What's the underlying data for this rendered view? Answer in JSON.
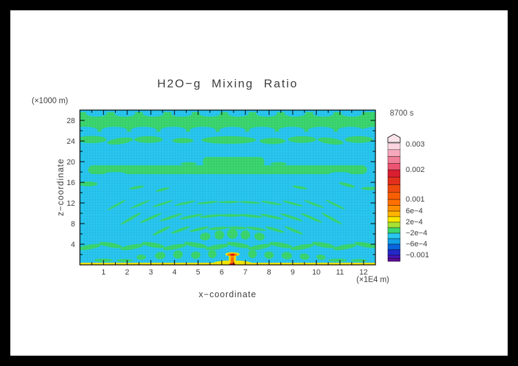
{
  "title": "H2O−g Mixing Ratio",
  "timestamp": "8700 s",
  "axes": {
    "x": {
      "label": "x−coordinate",
      "unit": "(×1E4 m)",
      "ticks": [
        1,
        2,
        3,
        4,
        5,
        6,
        7,
        8,
        9,
        10,
        11,
        12
      ],
      "minor_ticks": [
        0.5,
        1.5,
        2.5,
        3.5,
        4.5,
        5.5,
        6.5,
        7.5,
        8.5,
        9.5,
        10.5,
        11.5
      ],
      "range": [
        0,
        12.5
      ]
    },
    "z": {
      "label": "z−coordinate",
      "unit": "(×1000 m)",
      "ticks": [
        4,
        8,
        12,
        16,
        20,
        24,
        28
      ],
      "minor_ticks": [
        2,
        6,
        10,
        14,
        18,
        22,
        26
      ],
      "range": [
        0,
        30
      ]
    }
  },
  "colorbar": {
    "arrow_color": "#FBE3EA",
    "bands": [
      [
        "#FAD4DE",
        9.75
      ],
      [
        "#F6A8BC",
        9.75
      ],
      [
        "#F17E98",
        9.75
      ],
      [
        "#EB5472",
        9.75
      ],
      [
        "#D81E30",
        10.75
      ],
      [
        "#E2301C",
        10.75
      ],
      [
        "#EE4A0E",
        10.75
      ],
      [
        "#F85E04",
        10.75
      ],
      [
        "#FF7000",
        8.5
      ],
      [
        "#FF8E00",
        8.5
      ],
      [
        "#FFB400",
        8
      ],
      [
        "#F8E800",
        8
      ],
      [
        "#A8E232",
        8
      ],
      [
        "#3CD66E",
        8
      ],
      [
        "#29C6F0",
        8
      ],
      [
        "#129FE6",
        8
      ],
      [
        "#0A64DC",
        8
      ],
      [
        "#2428C8",
        8
      ],
      [
        "#4614B8",
        4.5
      ],
      [
        "#5C0F93",
        4.5
      ]
    ],
    "labels": [
      [
        "0.003",
        10
      ],
      [
        "0.002",
        47
      ],
      [
        "0.001",
        90
      ],
      [
        "6e−4",
        107
      ],
      [
        "2e−4",
        123
      ],
      [
        "−2e−4",
        139
      ],
      [
        "−6e−4",
        155
      ],
      [
        "−0.001",
        171
      ]
    ]
  },
  "chart_data": {
    "type": "heatmap",
    "title": "H2O−g Mixing Ratio",
    "time": "8700 s",
    "x_range": [
      0,
      12.5
    ],
    "z_range": [
      0,
      30
    ],
    "x_unit": "×1E4 m",
    "z_unit": "×1000 m",
    "levels": [
      -0.001,
      -0.0006,
      -0.0002,
      0.0002,
      0.0006,
      0.001,
      0.002,
      0.003
    ],
    "background_value_range": [
      -0.0006,
      -0.0002
    ],
    "description": "Filled-contour H2O gas mixing-ratio anomaly at t = 8700 s. Cyan background (slightly negative, −6e−4 to −2e−4) with near-zero green (−2e−4 to 2e−4) wave-interference blobs radiating from a surface source at x ≈ 6.5×10^4 m; thin yellow (2e−4 to 6e−4) surface layer along z = 0; narrow hot plume at x ≈ 6.5 reaching orange/red values up to ≈0.003 near z ≈ 2×1000 m.",
    "palette": {
      "BG": "#29C6F0",
      "G": "#3CD66E",
      "C": "#29C6F0",
      "Y": "#F8E800",
      "O": "#FF8E00",
      "D": "#FF6A00",
      "R": "#E00816"
    },
    "features": [
      [
        "r",
        6.25,
        27.7,
        12.5,
        3.8,
        0,
        "G"
      ],
      [
        "e",
        0.7,
        29.35,
        0.45,
        0.62,
        0,
        "C"
      ],
      [
        "e",
        1.9,
        29.35,
        0.45,
        0.62,
        0,
        "C"
      ],
      [
        "e",
        3.1,
        29.35,
        0.45,
        0.62,
        0,
        "C"
      ],
      [
        "e",
        4.3,
        29.35,
        0.45,
        0.62,
        0,
        "C"
      ],
      [
        "e",
        5.5,
        29.35,
        0.45,
        0.62,
        0,
        "C"
      ],
      [
        "e",
        6.7,
        29.35,
        0.45,
        0.62,
        0,
        "C"
      ],
      [
        "e",
        7.9,
        29.35,
        0.45,
        0.62,
        0,
        "C"
      ],
      [
        "e",
        9.1,
        29.35,
        0.45,
        0.62,
        0,
        "C"
      ],
      [
        "e",
        10.3,
        29.35,
        0.45,
        0.62,
        0,
        "C"
      ],
      [
        "e",
        11.5,
        29.35,
        0.45,
        0.62,
        0,
        "C"
      ],
      [
        "e",
        0.2,
        26.05,
        0.55,
        0.72,
        0,
        "C"
      ],
      [
        "e",
        1.45,
        26.05,
        0.55,
        0.72,
        0,
        "C"
      ],
      [
        "e",
        2.7,
        26.05,
        0.55,
        0.72,
        0,
        "C"
      ],
      [
        "e",
        3.95,
        26.05,
        0.55,
        0.72,
        0,
        "C"
      ],
      [
        "e",
        5.2,
        26.05,
        0.55,
        0.72,
        0,
        "C"
      ],
      [
        "e",
        6.45,
        26.05,
        0.55,
        0.72,
        0,
        "C"
      ],
      [
        "e",
        7.7,
        26.05,
        0.55,
        0.72,
        0,
        "C"
      ],
      [
        "e",
        8.95,
        26.05,
        0.55,
        0.72,
        0,
        "C"
      ],
      [
        "e",
        10.2,
        26.05,
        0.55,
        0.72,
        0,
        "C"
      ],
      [
        "e",
        11.45,
        26.05,
        0.55,
        0.72,
        0,
        "C"
      ],
      [
        "e",
        12.5,
        26.05,
        0.55,
        0.72,
        0,
        "C"
      ],
      [
        "e",
        0.5,
        24.3,
        0.62,
        0.7,
        0,
        "G"
      ],
      [
        "e",
        1.7,
        24.0,
        0.55,
        0.6,
        -8,
        "G"
      ],
      [
        "e",
        2.9,
        24.3,
        0.6,
        0.65,
        0,
        "G"
      ],
      [
        "e",
        4.35,
        24.1,
        0.45,
        0.5,
        0,
        "G"
      ],
      [
        "e",
        6.3,
        24.2,
        1.15,
        0.75,
        0,
        "G"
      ],
      [
        "e",
        8.15,
        24.0,
        0.55,
        0.6,
        0,
        "G"
      ],
      [
        "e",
        9.4,
        24.3,
        0.6,
        0.65,
        0,
        "G"
      ],
      [
        "e",
        10.6,
        24.0,
        0.55,
        0.6,
        8,
        "G"
      ],
      [
        "e",
        11.8,
        24.3,
        0.6,
        0.65,
        0,
        "G"
      ],
      [
        "r",
        6.25,
        18.45,
        11.8,
        1.7,
        8,
        "G"
      ],
      [
        "r",
        6.5,
        19.95,
        2.6,
        1.9,
        6,
        "G"
      ],
      [
        "e",
        4.6,
        19.6,
        0.35,
        0.3,
        0,
        "G"
      ],
      [
        "e",
        8.4,
        19.6,
        0.35,
        0.3,
        0,
        "G"
      ],
      [
        "e",
        1.5,
        17.65,
        0.45,
        0.33,
        0,
        "C"
      ],
      [
        "e",
        11.0,
        17.65,
        0.45,
        0.33,
        0,
        "C"
      ],
      [
        "e",
        0.35,
        15.7,
        0.4,
        0.45,
        0,
        "G"
      ],
      [
        "e",
        2.4,
        15.0,
        0.32,
        0.27,
        -10,
        "G"
      ],
      [
        "e",
        3.5,
        14.6,
        0.3,
        0.25,
        -15,
        "G"
      ],
      [
        "e",
        9.3,
        15.0,
        0.32,
        0.27,
        10,
        "G"
      ],
      [
        "e",
        11.3,
        15.5,
        0.35,
        0.3,
        15,
        "G"
      ],
      [
        "e",
        12.25,
        14.8,
        0.35,
        0.3,
        0,
        "G"
      ],
      [
        "e",
        1.55,
        11.6,
        0.45,
        0.22,
        -29,
        "G"
      ],
      [
        "e",
        2.55,
        11.73,
        0.45,
        0.22,
        -23,
        "G"
      ],
      [
        "e",
        3.5,
        11.85,
        0.45,
        0.22,
        -18,
        "G"
      ],
      [
        "e",
        4.45,
        11.96,
        0.45,
        0.22,
        -12,
        "G"
      ],
      [
        "e",
        5.4,
        12.07,
        0.45,
        0.22,
        -6,
        "G"
      ],
      [
        "e",
        6.3,
        12.18,
        0.45,
        0.22,
        -1,
        "G"
      ],
      [
        "e",
        7.2,
        12.11,
        0.45,
        0.22,
        4,
        "G"
      ],
      [
        "e",
        8.1,
        12.0,
        0.45,
        0.22,
        10,
        "G"
      ],
      [
        "e",
        9.0,
        11.89,
        0.45,
        0.22,
        15,
        "G"
      ],
      [
        "e",
        9.9,
        11.79,
        0.45,
        0.22,
        21,
        "G"
      ],
      [
        "e",
        10.8,
        11.68,
        0.45,
        0.22,
        26,
        "G"
      ],
      [
        "e",
        2.15,
        8.96,
        0.5,
        0.25,
        -30,
        "G"
      ],
      [
        "e",
        3.0,
        9.08,
        0.5,
        0.25,
        -24,
        "G"
      ],
      [
        "e",
        3.85,
        9.21,
        0.5,
        0.25,
        -18,
        "G"
      ],
      [
        "e",
        4.7,
        9.34,
        0.5,
        0.25,
        -12,
        "G"
      ],
      [
        "e",
        5.55,
        9.47,
        0.5,
        0.25,
        -6,
        "G"
      ],
      [
        "e",
        6.4,
        9.59,
        0.5,
        0.25,
        0,
        "G"
      ],
      [
        "e",
        7.25,
        9.48,
        0.5,
        0.25,
        6,
        "G"
      ],
      [
        "e",
        8.1,
        9.35,
        0.5,
        0.25,
        12,
        "G"
      ],
      [
        "e",
        8.95,
        9.23,
        0.5,
        0.25,
        18,
        "G"
      ],
      [
        "e",
        9.8,
        9.1,
        0.5,
        0.25,
        23,
        "G"
      ],
      [
        "e",
        10.65,
        8.97,
        0.5,
        0.25,
        29,
        "G"
      ],
      [
        "e",
        3.45,
        6.6,
        0.42,
        0.28,
        -27,
        "G"
      ],
      [
        "e",
        4.25,
        6.76,
        0.42,
        0.28,
        -20,
        "G"
      ],
      [
        "e",
        5.05,
        6.92,
        0.42,
        0.28,
        -13,
        "G"
      ],
      [
        "e",
        5.85,
        7.08,
        0.42,
        0.28,
        -5,
        "G"
      ],
      [
        "e",
        6.65,
        7.16,
        0.42,
        0.28,
        2,
        "G"
      ],
      [
        "e",
        7.45,
        7.0,
        0.42,
        0.28,
        9,
        "G"
      ],
      [
        "e",
        8.25,
        6.84,
        0.42,
        0.28,
        16,
        "G"
      ],
      [
        "e",
        9.05,
        6.68,
        0.42,
        0.28,
        23,
        "G"
      ],
      [
        "e",
        5.3,
        5.5,
        0.22,
        0.75,
        -8,
        "G"
      ],
      [
        "e",
        5.9,
        5.8,
        0.2,
        0.9,
        -4,
        "G"
      ],
      [
        "e",
        6.45,
        6.0,
        0.22,
        1.0,
        0,
        "G"
      ],
      [
        "e",
        7.0,
        5.8,
        0.2,
        0.9,
        4,
        "G"
      ],
      [
        "e",
        7.6,
        5.5,
        0.22,
        0.75,
        8,
        "G"
      ],
      [
        "e",
        0.4,
        3.45,
        0.5,
        0.45,
        -10,
        "G"
      ],
      [
        "e",
        1.3,
        3.85,
        0.5,
        0.45,
        10,
        "G"
      ],
      [
        "e",
        2.2,
        3.45,
        0.5,
        0.45,
        -10,
        "G"
      ],
      [
        "e",
        3.1,
        3.85,
        0.5,
        0.45,
        10,
        "G"
      ],
      [
        "e",
        4.0,
        3.45,
        0.5,
        0.45,
        -10,
        "G"
      ],
      [
        "e",
        4.9,
        3.85,
        0.5,
        0.45,
        10,
        "G"
      ],
      [
        "e",
        5.8,
        3.45,
        0.5,
        0.45,
        -10,
        "G"
      ],
      [
        "e",
        6.7,
        3.85,
        0.5,
        0.45,
        10,
        "G"
      ],
      [
        "e",
        7.6,
        3.45,
        0.5,
        0.45,
        -10,
        "G"
      ],
      [
        "e",
        8.5,
        3.85,
        0.5,
        0.45,
        10,
        "G"
      ],
      [
        "e",
        9.4,
        3.45,
        0.5,
        0.45,
        -10,
        "G"
      ],
      [
        "e",
        10.3,
        3.85,
        0.5,
        0.45,
        10,
        "G"
      ],
      [
        "e",
        11.2,
        3.45,
        0.5,
        0.45,
        -10,
        "G"
      ],
      [
        "e",
        12.1,
        3.85,
        0.5,
        0.45,
        10,
        "G"
      ],
      [
        "e",
        2.6,
        1.5,
        0.2,
        0.5,
        0,
        "G"
      ],
      [
        "e",
        3.4,
        1.8,
        0.22,
        0.7,
        -6,
        "G"
      ],
      [
        "e",
        4.15,
        2.0,
        0.2,
        0.8,
        -4,
        "G"
      ],
      [
        "e",
        4.9,
        1.9,
        0.2,
        0.7,
        -2,
        "G"
      ],
      [
        "e",
        5.6,
        2.1,
        0.18,
        0.8,
        0,
        "G"
      ],
      [
        "e",
        7.3,
        2.1,
        0.18,
        0.8,
        0,
        "G"
      ],
      [
        "e",
        8.0,
        1.9,
        0.2,
        0.7,
        2,
        "G"
      ],
      [
        "e",
        8.75,
        1.8,
        0.22,
        0.7,
        6,
        "G"
      ],
      [
        "e",
        9.5,
        1.6,
        0.2,
        0.6,
        8,
        "G"
      ],
      [
        "e",
        10.2,
        1.5,
        0.2,
        0.5,
        8,
        "G"
      ],
      [
        "e",
        1.0,
        0.9,
        0.4,
        0.3,
        0,
        "G"
      ],
      [
        "e",
        1.9,
        0.85,
        0.35,
        0.28,
        0,
        "G"
      ],
      [
        "e",
        10.9,
        0.9,
        0.4,
        0.3,
        0,
        "G"
      ],
      [
        "e",
        11.8,
        0.85,
        0.35,
        0.28,
        0,
        "G"
      ],
      [
        "r",
        6.25,
        0.21,
        12.5,
        0.42,
        0,
        "Y"
      ],
      [
        "e",
        6.45,
        0.35,
        0.8,
        0.5,
        0,
        "Y"
      ],
      [
        "r",
        6.45,
        1.15,
        0.3,
        2.3,
        4,
        "Y"
      ],
      [
        "e",
        6.45,
        2.05,
        0.3,
        0.4,
        0,
        "Y"
      ],
      [
        "e",
        6.45,
        1.98,
        0.22,
        0.3,
        0,
        "O"
      ],
      [
        "r",
        6.45,
        0.95,
        0.16,
        1.9,
        2,
        "O"
      ],
      [
        "e",
        6.45,
        1.95,
        0.14,
        0.22,
        0,
        "D"
      ],
      [
        "r",
        6.45,
        0.7,
        0.1,
        1.3,
        2,
        "D"
      ],
      [
        "e",
        6.45,
        1.95,
        0.09,
        0.15,
        0,
        "R"
      ],
      [
        "r",
        6.45,
        0.15,
        0.24,
        0.3,
        1,
        "R"
      ]
    ]
  }
}
